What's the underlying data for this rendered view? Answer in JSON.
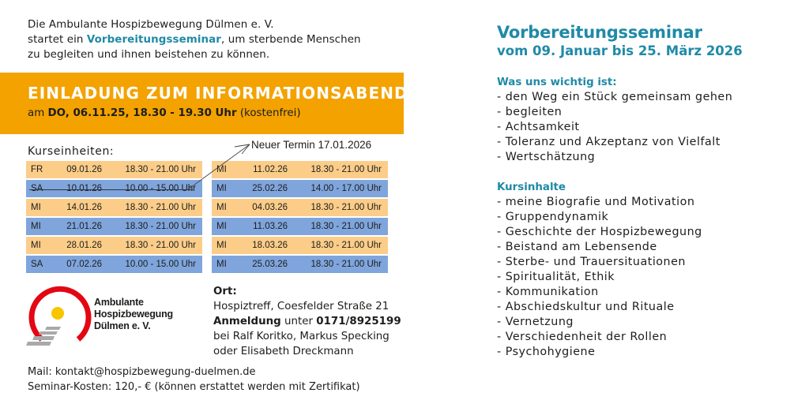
{
  "intro": {
    "line1": "Die Ambulante Hospizbewegung Dülmen e. V.",
    "line2_pre": "startet ein ",
    "line2_highlight": "Vorbereitungsseminar",
    "line2_post": ", um sterbende Menschen",
    "line3": "zu begleiten und ihnen beistehen zu können."
  },
  "banner": {
    "title": "EINLADUNG ZUM INFORMATIONSABEND",
    "sub_pre": "am ",
    "sub_bold": "DO, 06.11.25, 18.30 - 19.30 Uhr",
    "sub_post": " (kostenfrei)",
    "color": "#f3a200"
  },
  "schedule": {
    "label": "Kurseinheiten:",
    "new_date_note": "Neuer Termin 17.01.2026",
    "colors": {
      "orange": "#fbcd89",
      "blue": "#7fa5dc"
    },
    "left": [
      {
        "day": "FR",
        "date": "09.01.26",
        "time": "18.30 - 21.00 Uhr"
      },
      {
        "day": "SA",
        "date": "10.01.26",
        "time": "10.00 - 15.00 Uhr",
        "struck": true
      },
      {
        "day": "MI",
        "date": "14.01.26",
        "time": "18.30 - 21.00 Uhr"
      },
      {
        "day": "MI",
        "date": "21.01.26",
        "time": "18.30 - 21.00 Uhr"
      },
      {
        "day": "MI",
        "date": "28.01.26",
        "time": "18.30 - 21.00 Uhr"
      },
      {
        "day": "SA",
        "date": "07.02.26",
        "time": "10.00 - 15.00 Uhr"
      }
    ],
    "right": [
      {
        "day": "MI",
        "date": "11.02.26",
        "time": "18.30 - 21.00 Uhr"
      },
      {
        "day": "MI",
        "date": "25.02.26",
        "time": "14.00 - 17.00 Uhr"
      },
      {
        "day": "MI",
        "date": "04.03.26",
        "time": "18.30 - 21.00 Uhr"
      },
      {
        "day": "MI",
        "date": "11.03.26",
        "time": "18.30 - 21.00 Uhr"
      },
      {
        "day": "MI",
        "date": "18.03.26",
        "time": "18.30 - 21.00 Uhr"
      },
      {
        "day": "MI",
        "date": "25.03.26",
        "time": "18.30 - 21.00 Uhr"
      }
    ]
  },
  "logo": {
    "line1": "Ambulante",
    "line2": "Hospizbewegung",
    "line3": "Dülmen e. V.",
    "ring_color": "#e30613",
    "sun_color": "#f7c600",
    "steps_color": "#a9a9a9"
  },
  "ort": {
    "label": "Ort:",
    "address": "Hospiztreff, Coesfelder Straße 21",
    "anmeldung_bold": "Anmeldung",
    "anmeldung_mid": " unter ",
    "phone": "0171/8925199",
    "contacts1": "bei Ralf Koritko, Markus Specking",
    "contacts2": "oder Elisabeth Dreckmann"
  },
  "footer": {
    "mail": "Mail: kontakt@hospizbewegung-duelmen.de",
    "cost": "Seminar-Kosten: 120,- € (können erstattet werden mit Zertifikat)"
  },
  "right": {
    "title": "Vorbereitungsseminar",
    "subtitle": "vom 09. Januar bis 25. März 2026",
    "values_heading": "Was uns wichtig ist:",
    "values": [
      "- den Weg ein Stück gemeinsam gehen",
      "- begleiten",
      "- Achtsamkeit",
      "- Toleranz und Akzeptanz von Vielfalt",
      "- Wertschätzung"
    ],
    "contents_heading": "Kursinhalte",
    "contents": [
      "- meine Biografie und Motivation",
      "- Gruppendynamik",
      "- Geschichte der Hospizbewegung",
      "- Beistand am Lebensende",
      "- Sterbe- und Trauersituationen",
      "- Spiritualität, Ethik",
      "- Kommunikation",
      "- Abschiedskultur und Rituale",
      "- Vernetzung",
      "- Verschiedenheit der Rollen",
      "- Psychohygiene"
    ],
    "accent": "#1f8aa6"
  }
}
